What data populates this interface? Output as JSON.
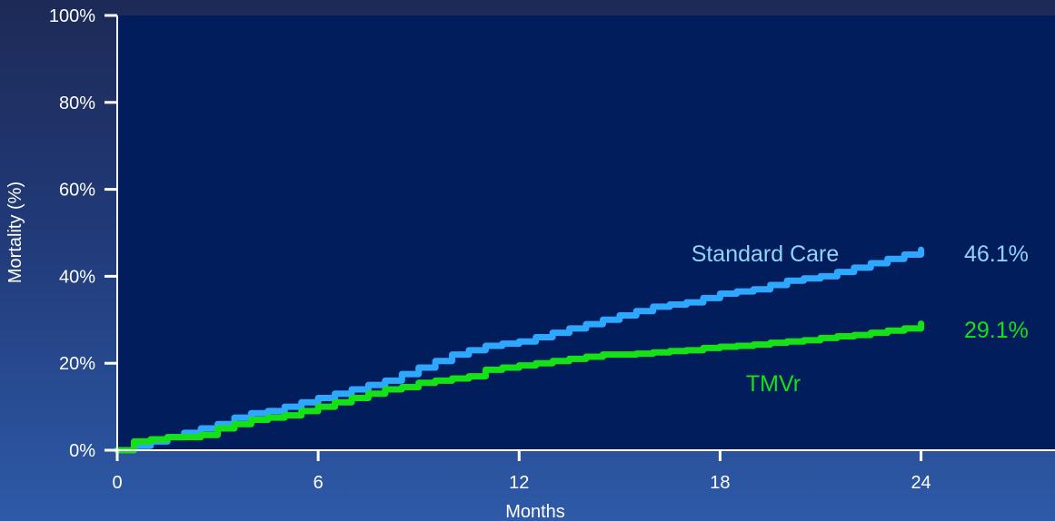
{
  "chart_data": {
    "type": "line",
    "title": "",
    "xlabel": "Months",
    "ylabel": "Mortality (%)",
    "xlim": [
      0,
      28
    ],
    "ylim": [
      0,
      100
    ],
    "xticks": [
      0,
      6,
      12,
      18,
      24
    ],
    "yticks": [
      0,
      20,
      40,
      60,
      80,
      100
    ],
    "ytick_suffix": "%",
    "grid": false,
    "background_plot": "#021d5c",
    "series": [
      {
        "name": "Standard Care",
        "color": "#2ea8ff",
        "end_label": "46.1%",
        "x": [
          0,
          0.5,
          1,
          1.5,
          2,
          2.5,
          3,
          3.5,
          4,
          4.5,
          5,
          5.5,
          6,
          6.5,
          7,
          7.5,
          8,
          8.5,
          9,
          9.5,
          10,
          10.5,
          11,
          11.5,
          12,
          12.5,
          13,
          13.5,
          14,
          14.5,
          15,
          15.5,
          16,
          16.5,
          17,
          17.5,
          18,
          18.5,
          19,
          19.5,
          20,
          20.5,
          21,
          21.5,
          22,
          22.5,
          23,
          23.5,
          24
        ],
        "y": [
          0,
          1,
          2,
          3,
          4,
          5,
          6,
          7.5,
          8.5,
          9,
          10,
          11,
          12,
          13,
          14,
          15,
          16,
          17.5,
          19,
          20.5,
          22,
          23,
          24,
          24.5,
          25,
          26,
          27,
          28,
          29,
          30,
          31,
          32,
          33,
          33.5,
          34,
          35,
          36,
          36.5,
          37,
          38,
          39,
          39.5,
          40,
          41,
          42,
          43,
          44,
          45,
          46.1
        ]
      },
      {
        "name": "TMVr",
        "color": "#16e016",
        "end_label": "29.1%",
        "x": [
          0,
          0.5,
          1,
          1.5,
          2,
          2.5,
          3,
          3.5,
          4,
          4.5,
          5,
          5.5,
          6,
          6.5,
          7,
          7.5,
          8,
          8.5,
          9,
          9.5,
          10,
          10.5,
          11,
          11.5,
          12,
          12.5,
          13,
          13.5,
          14,
          14.5,
          15,
          15.5,
          16,
          16.5,
          17,
          17.5,
          18,
          18.5,
          19,
          19.5,
          20,
          20.5,
          21,
          21.5,
          22,
          22.5,
          23,
          23.5,
          24
        ],
        "y": [
          0,
          2,
          2.5,
          3,
          3,
          3.5,
          5,
          6,
          7,
          7.5,
          8,
          9,
          10,
          11,
          12,
          13,
          14,
          14.5,
          15.5,
          16,
          16.5,
          17,
          18.5,
          19,
          19.5,
          20,
          20.5,
          21,
          21.5,
          22,
          22,
          22.2,
          22.5,
          22.8,
          23,
          23.5,
          23.8,
          24,
          24.3,
          24.7,
          25,
          25.3,
          25.8,
          26.2,
          26.5,
          27,
          27.5,
          28,
          29.1
        ]
      }
    ],
    "series_labels": [
      {
        "text": "Standard Care",
        "color": "#8fd3ff"
      },
      {
        "text": "TMVr",
        "color": "#16e016"
      }
    ]
  }
}
